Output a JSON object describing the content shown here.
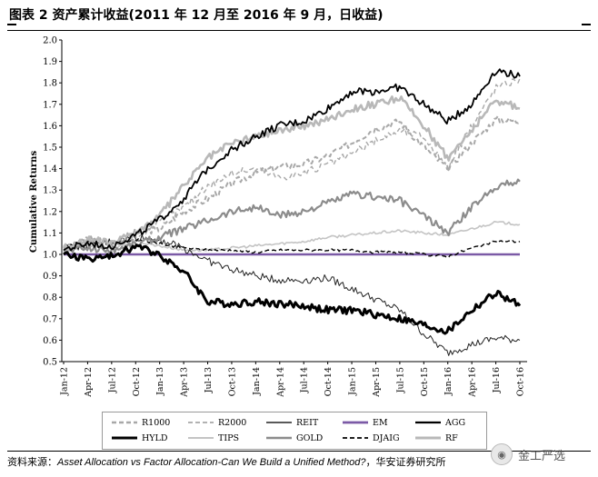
{
  "header": {
    "title": "图表 2 资产累计收益(2011 年 12 月至 2016 年 9 月，日收益)"
  },
  "source": {
    "label": "资料来源：",
    "reference": "Asset Allocation vs Factor Allocation-Can We Build a Unified Method?",
    "publisher": "，华安证券研究所"
  },
  "watermark": {
    "icon": "wechat-icon",
    "text": "金工严选"
  },
  "chart_data": {
    "type": "line",
    "title": "",
    "xlabel": "",
    "ylabel": "Cumulative Returns",
    "ylim": [
      0.5,
      2.0
    ],
    "yticks": [
      "0.5",
      "0.6",
      "0.7",
      "0.8",
      "0.9",
      "1.0",
      "1.1",
      "1.2",
      "1.3",
      "1.4",
      "1.5",
      "1.6",
      "1.7",
      "1.8",
      "1.9",
      "2.0"
    ],
    "xticks": [
      "Jan-12",
      "Apr-12",
      "Jul-12",
      "Oct-12",
      "Jan-13",
      "Apr-13",
      "Jul-13",
      "Oct-13",
      "Jan-14",
      "Apr-14",
      "Jul-14",
      "Oct-14",
      "Jan-15",
      "Apr-15",
      "Jul-15",
      "Oct-15",
      "Jan-16",
      "Apr-16",
      "Jul-16",
      "Oct-16"
    ],
    "grid": false,
    "legend_position": "bottom",
    "series": [
      {
        "name": "R1000",
        "style": "dashed",
        "color": "#a8a8a8",
        "width": 2,
        "values": [
          1.02,
          1.08,
          1.05,
          1.1,
          1.12,
          1.2,
          1.26,
          1.33,
          1.38,
          1.41,
          1.42,
          1.46,
          1.52,
          1.59,
          1.62,
          1.5,
          1.4,
          1.52,
          1.63,
          1.62
        ]
      },
      {
        "name": "R2000",
        "style": "dashed",
        "color": "#a8a8a8",
        "width": 1.4,
        "values": [
          1.03,
          1.06,
          1.04,
          1.08,
          1.15,
          1.22,
          1.32,
          1.38,
          1.4,
          1.36,
          1.38,
          1.42,
          1.47,
          1.53,
          1.58,
          1.55,
          1.4,
          1.6,
          1.78,
          1.82
        ]
      },
      {
        "name": "REIT",
        "style": "solid",
        "color": "#222222",
        "width": 1,
        "values": [
          1.03,
          1.04,
          1.06,
          1.08,
          1.07,
          1.03,
          0.97,
          0.93,
          0.9,
          0.88,
          0.88,
          0.89,
          0.84,
          0.79,
          0.74,
          0.63,
          0.54,
          0.58,
          0.61,
          0.6
        ]
      },
      {
        "name": "EM",
        "style": "solid",
        "color": "#7b5aa6",
        "width": 2.4,
        "values": [
          1.0,
          1.0,
          1.0,
          1.0,
          1.0,
          1.0,
          1.0,
          1.0,
          1.0,
          1.0,
          1.0,
          1.0,
          1.0,
          1.0,
          1.0,
          1.0,
          1.0,
          1.0,
          1.0,
          1.0
        ]
      },
      {
        "name": "AGG",
        "style": "solid",
        "color": "#000000",
        "width": 1.8,
        "values": [
          1.02,
          1.05,
          1.04,
          1.09,
          1.16,
          1.26,
          1.4,
          1.49,
          1.55,
          1.6,
          1.62,
          1.68,
          1.76,
          1.76,
          1.78,
          1.7,
          1.62,
          1.7,
          1.86,
          1.83
        ]
      },
      {
        "name": "HYLD",
        "style": "solid",
        "color": "#000000",
        "width": 3,
        "values": [
          1.0,
          0.98,
          0.99,
          1.04,
          1.0,
          0.92,
          0.78,
          0.77,
          0.78,
          0.77,
          0.76,
          0.74,
          0.74,
          0.72,
          0.7,
          0.67,
          0.64,
          0.74,
          0.82,
          0.76
        ]
      },
      {
        "name": "TIPS",
        "style": "solid",
        "color": "#c4c4c4",
        "width": 1.6,
        "values": [
          1.02,
          1.04,
          1.03,
          1.06,
          1.04,
          1.02,
          1.02,
          1.03,
          1.04,
          1.05,
          1.06,
          1.08,
          1.09,
          1.1,
          1.11,
          1.1,
          1.09,
          1.12,
          1.15,
          1.14
        ]
      },
      {
        "name": "GOLD",
        "style": "solid",
        "color": "#8c8c8c",
        "width": 2.2,
        "values": [
          1.02,
          1.03,
          1.02,
          1.05,
          1.08,
          1.12,
          1.16,
          1.2,
          1.22,
          1.18,
          1.2,
          1.24,
          1.28,
          1.27,
          1.25,
          1.18,
          1.1,
          1.22,
          1.32,
          1.34
        ]
      },
      {
        "name": "DJAIG",
        "style": "dashed",
        "color": "#000000",
        "width": 1.4,
        "values": [
          1.04,
          1.06,
          1.05,
          1.07,
          1.05,
          1.03,
          1.02,
          1.02,
          1.01,
          1.02,
          1.02,
          1.02,
          1.02,
          1.01,
          1.01,
          1.0,
          0.99,
          1.03,
          1.06,
          1.06
        ]
      },
      {
        "name": "RF",
        "style": "solid",
        "color": "#b8b8b8",
        "width": 2.6,
        "values": [
          1.03,
          1.07,
          1.05,
          1.1,
          1.18,
          1.32,
          1.45,
          1.52,
          1.55,
          1.58,
          1.6,
          1.63,
          1.68,
          1.7,
          1.73,
          1.6,
          1.45,
          1.58,
          1.72,
          1.68
        ]
      }
    ]
  }
}
